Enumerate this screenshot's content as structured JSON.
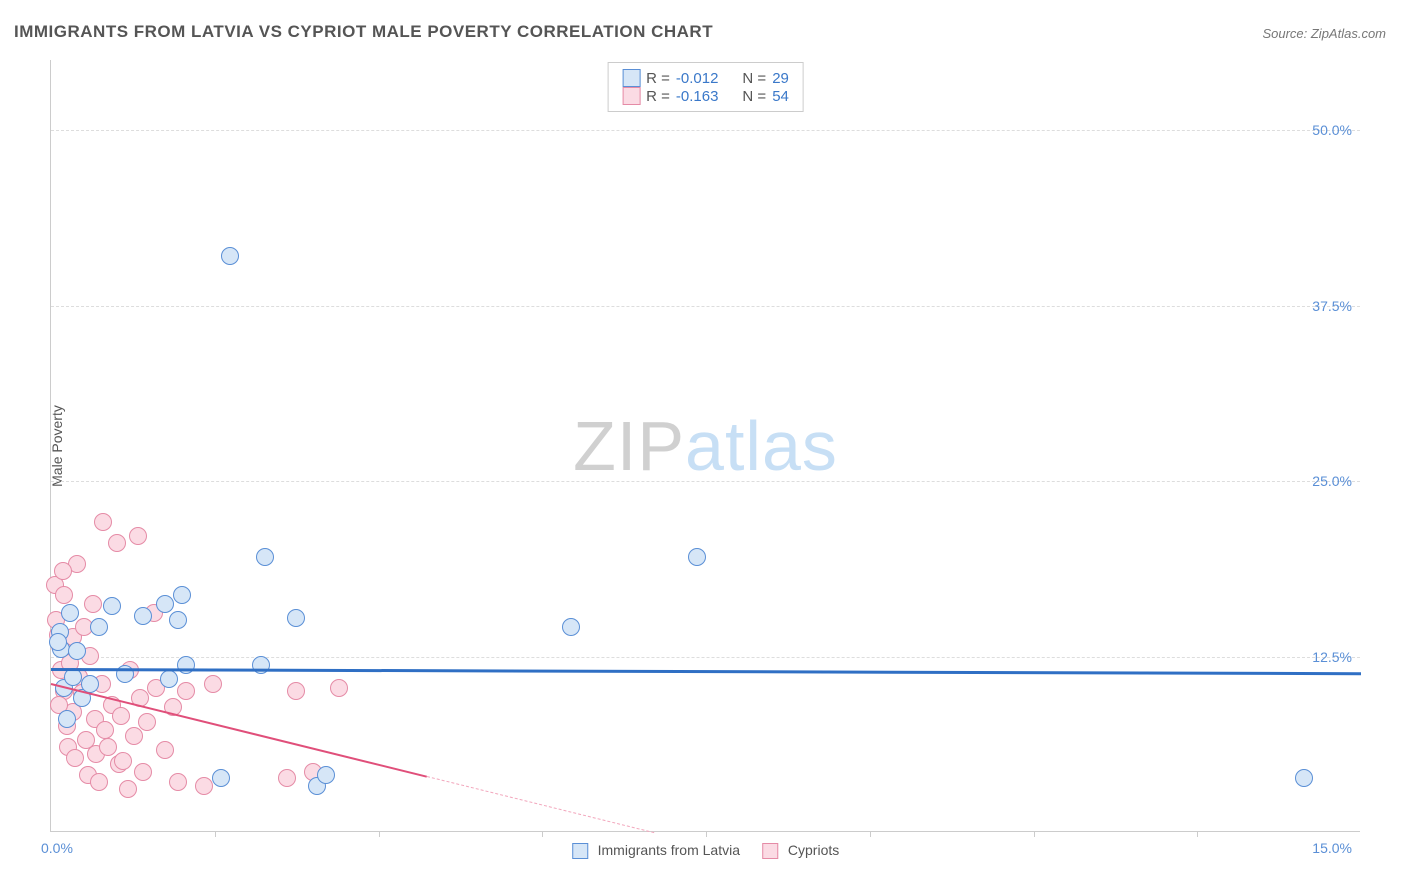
{
  "title": "IMMIGRANTS FROM LATVIA VS CYPRIOT MALE POVERTY CORRELATION CHART",
  "source_label": "Source: ZipAtlas.com",
  "ylabel": "Male Poverty",
  "watermark": {
    "strong": "ZIP",
    "light": "atlas"
  },
  "chart": {
    "type": "scatter",
    "xlim": [
      0.0,
      15.0
    ],
    "ylim": [
      0.0,
      55.0
    ],
    "x_ticks_labels": {
      "min": "0.0%",
      "max": "15.0%"
    },
    "x_minor_tick_positions": [
      1.875,
      3.75,
      5.625,
      7.5,
      9.375,
      11.25,
      13.125
    ],
    "y_ticks": [
      12.5,
      25.0,
      37.5,
      50.0
    ],
    "y_tick_labels": [
      "12.5%",
      "25.0%",
      "37.5%",
      "50.0%"
    ],
    "background_color": "#ffffff",
    "grid_color": "#dddddd",
    "axis_color": "#cccccc",
    "marker_radius": 9,
    "marker_stroke_width": 1.5,
    "series": [
      {
        "name": "Immigrants from Latvia",
        "fill": "#d6e6f7",
        "stroke": "#5a8fd6",
        "r_value": "-0.012",
        "n_value": "29",
        "trend": {
          "x1": 0.0,
          "y1": 11.7,
          "x2": 15.0,
          "y2": 11.4,
          "color": "#2f6fc4",
          "width": 3,
          "dash": false
        },
        "points": [
          [
            0.1,
            14.2
          ],
          [
            0.12,
            13.0
          ],
          [
            0.15,
            10.2
          ],
          [
            0.18,
            8.0
          ],
          [
            0.22,
            15.5
          ],
          [
            0.25,
            11.0
          ],
          [
            0.3,
            12.8
          ],
          [
            0.35,
            9.5
          ],
          [
            0.45,
            10.5
          ],
          [
            0.55,
            14.5
          ],
          [
            0.7,
            16.0
          ],
          [
            0.85,
            11.2
          ],
          [
            1.05,
            15.3
          ],
          [
            1.3,
            16.2
          ],
          [
            1.35,
            10.8
          ],
          [
            1.45,
            15.0
          ],
          [
            1.5,
            16.8
          ],
          [
            1.55,
            11.8
          ],
          [
            1.95,
            3.8
          ],
          [
            2.05,
            41.0
          ],
          [
            2.4,
            11.8
          ],
          [
            2.45,
            19.5
          ],
          [
            2.8,
            15.2
          ],
          [
            3.05,
            3.2
          ],
          [
            3.15,
            4.0
          ],
          [
            5.95,
            14.5
          ],
          [
            7.4,
            19.5
          ],
          [
            14.35,
            3.8
          ],
          [
            0.08,
            13.5
          ]
        ]
      },
      {
        "name": "Cypriots",
        "fill": "#fbdbe4",
        "stroke": "#e58ba6",
        "r_value": "-0.163",
        "n_value": "54",
        "trend_solid": {
          "x1": 0.0,
          "y1": 10.6,
          "x2": 4.3,
          "y2": 4.0,
          "color": "#e04f7a",
          "width": 2.5
        },
        "trend_dashed": {
          "x1": 4.3,
          "y1": 4.0,
          "x2": 6.9,
          "y2": 0.0,
          "color": "#f2a6bc",
          "width": 1.5
        },
        "points": [
          [
            0.05,
            17.5
          ],
          [
            0.08,
            14.0
          ],
          [
            0.1,
            13.2
          ],
          [
            0.12,
            11.5
          ],
          [
            0.15,
            10.0
          ],
          [
            0.15,
            16.8
          ],
          [
            0.18,
            7.5
          ],
          [
            0.2,
            6.0
          ],
          [
            0.22,
            12.0
          ],
          [
            0.25,
            13.8
          ],
          [
            0.25,
            8.5
          ],
          [
            0.28,
            5.2
          ],
          [
            0.3,
            19.0
          ],
          [
            0.32,
            11.0
          ],
          [
            0.35,
            9.8
          ],
          [
            0.38,
            14.5
          ],
          [
            0.4,
            6.5
          ],
          [
            0.42,
            4.0
          ],
          [
            0.45,
            12.5
          ],
          [
            0.48,
            16.2
          ],
          [
            0.5,
            8.0
          ],
          [
            0.52,
            5.5
          ],
          [
            0.55,
            3.5
          ],
          [
            0.58,
            10.5
          ],
          [
            0.6,
            22.0
          ],
          [
            0.62,
            7.2
          ],
          [
            0.7,
            9.0
          ],
          [
            0.75,
            20.5
          ],
          [
            0.78,
            4.8
          ],
          [
            0.8,
            8.2
          ],
          [
            0.82,
            5.0
          ],
          [
            0.88,
            3.0
          ],
          [
            0.9,
            11.5
          ],
          [
            0.95,
            6.8
          ],
          [
            1.0,
            21.0
          ],
          [
            1.02,
            9.5
          ],
          [
            1.05,
            4.2
          ],
          [
            1.1,
            7.8
          ],
          [
            1.18,
            15.5
          ],
          [
            1.2,
            10.2
          ],
          [
            1.3,
            5.8
          ],
          [
            1.4,
            8.8
          ],
          [
            1.45,
            3.5
          ],
          [
            1.55,
            10.0
          ],
          [
            1.75,
            3.2
          ],
          [
            1.85,
            10.5
          ],
          [
            2.7,
            3.8
          ],
          [
            2.8,
            10.0
          ],
          [
            3.0,
            4.2
          ],
          [
            3.3,
            10.2
          ],
          [
            0.06,
            15.0
          ],
          [
            0.09,
            9.0
          ],
          [
            0.14,
            18.5
          ],
          [
            0.65,
            6.0
          ]
        ]
      }
    ]
  },
  "legend_top": {
    "rows": [
      {
        "swatch_fill": "#d6e6f7",
        "swatch_stroke": "#5a8fd6",
        "r_label": "R =",
        "r_value": "-0.012",
        "n_label": "N =",
        "n_value": "29"
      },
      {
        "swatch_fill": "#fbdbe4",
        "swatch_stroke": "#e58ba6",
        "r_label": "R =",
        "r_value": "-0.163",
        "n_label": "N =",
        "n_value": "54"
      }
    ]
  },
  "legend_bottom": {
    "items": [
      {
        "swatch_fill": "#d6e6f7",
        "swatch_stroke": "#5a8fd6",
        "label": "Immigrants from Latvia"
      },
      {
        "swatch_fill": "#fbdbe4",
        "swatch_stroke": "#e58ba6",
        "label": "Cypriots"
      }
    ]
  }
}
